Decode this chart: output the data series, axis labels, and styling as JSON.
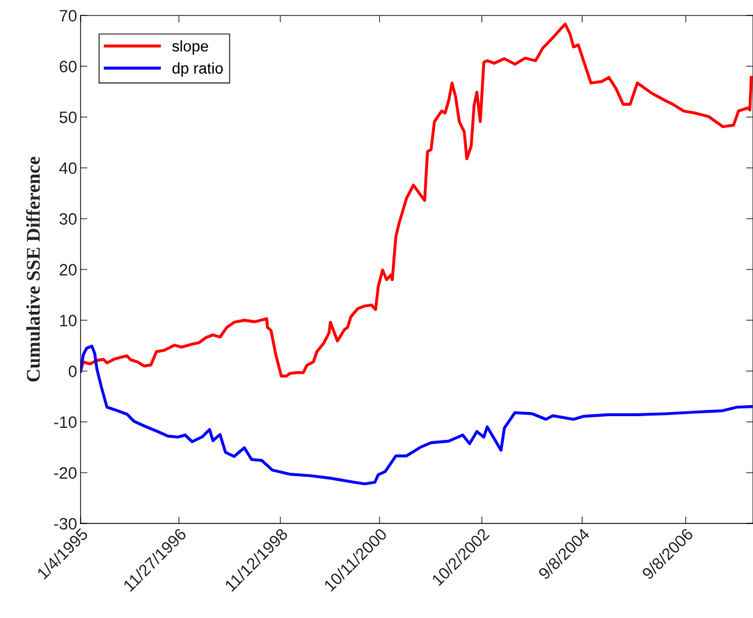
{
  "chart_data": {
    "type": "line",
    "ylabel": "Cumulative SSE Difference",
    "xlim": [
      "1995-01-04",
      "2007-12-26"
    ],
    "xticks": [
      {
        "value": "1995-01-04",
        "label": "1/4/1995"
      },
      {
        "value": "1996-11-27",
        "label": "11/27/1996"
      },
      {
        "value": "1998-11-12",
        "label": "11/12/1998"
      },
      {
        "value": "2000-10-11",
        "label": "10/11/2000"
      },
      {
        "value": "2002-10-02",
        "label": "10/2/2002"
      },
      {
        "value": "2004-09-08",
        "label": "9/8/2004"
      },
      {
        "value": "2006-09-08",
        "label": "9/8/2006"
      }
    ],
    "ylim": [
      -30,
      70
    ],
    "yticks": [
      -30,
      -20,
      -10,
      0,
      10,
      20,
      30,
      40,
      50,
      60,
      70
    ],
    "grid": false,
    "legend": "top left",
    "marker": "none",
    "line_style": "solid",
    "series": [
      {
        "name": "slope",
        "color": "#ff0000",
        "x": [
          "1995-01-04",
          "1995-01-23",
          "1995-03-12",
          "1995-04-29",
          "1995-06-15",
          "1995-07-09",
          "1995-08-26",
          "1995-10-12",
          "1995-11-28",
          "1995-12-23",
          "1996-02-09",
          "1996-03-27",
          "1996-05-14",
          "1996-06-21",
          "1996-08-18",
          "1996-10-28",
          "1996-12-16",
          "1997-02-28",
          "1997-04-19",
          "1997-06-06",
          "1997-07-25",
          "1997-09-13",
          "1997-10-31",
          "1997-12-21",
          "1998-03-03",
          "1998-05-17",
          "1998-08-08",
          "1998-08-13",
          "1998-09-07",
          "1998-10-11",
          "1998-11-19",
          "1998-12-24",
          "1999-01-16",
          "1999-03-05",
          "1999-04-23",
          "1999-05-17",
          "1999-07-03",
          "1999-07-27",
          "1999-09-14",
          "1999-10-21",
          "1999-10-31",
          "1999-12-19",
          "2000-02-05",
          "2000-02-29",
          "2000-03-23",
          "2000-05-11",
          "2000-06-28",
          "2000-08-16",
          "2000-09-13",
          "2000-10-02",
          "2000-11-01",
          "2000-11-30",
          "2000-12-30",
          "2001-01-09",
          "2001-02-03",
          "2001-02-27",
          "2001-04-19",
          "2001-06-07",
          "2001-07-26",
          "2001-08-25",
          "2001-09-14",
          "2001-10-09",
          "2001-11-02",
          "2001-12-23",
          "2002-01-16",
          "2002-02-10",
          "2002-03-06",
          "2002-03-31",
          "2002-04-26",
          "2002-05-31",
          "2002-06-18",
          "2002-07-19",
          "2002-08-08",
          "2002-08-28",
          "2002-09-21",
          "2002-10-16",
          "2002-11-09",
          "2002-12-28",
          "2003-03-10",
          "2003-05-23",
          "2003-08-03",
          "2003-10-16",
          "2003-12-03",
          "2004-02-14",
          "2004-04-18",
          "2004-05-12",
          "2004-06-15",
          "2004-07-09",
          "2004-08-12",
          "2004-09-21",
          "2004-11-09",
          "2005-01-24",
          "2005-03-15",
          "2005-05-05",
          "2005-06-24",
          "2005-08-12",
          "2005-10-02",
          "2006-01-11",
          "2006-04-20",
          "2006-06-10",
          "2006-08-24",
          "2006-11-08",
          "2007-02-17",
          "2007-04-07",
          "2007-05-28",
          "2007-08-11",
          "2007-09-15",
          "2007-11-20",
          "2007-12-04",
          "2007-12-14"
        ],
        "values": [
          0,
          1.8,
          1.4,
          2.1,
          2.3,
          1.6,
          2.3,
          2.7,
          3.0,
          2.2,
          1.8,
          1.0,
          1.2,
          3.8,
          4.1,
          5.1,
          4.7,
          5.3,
          5.6,
          6.6,
          7.1,
          6.7,
          8.6,
          9.6,
          10.0,
          9.7,
          10.3,
          8.6,
          8.0,
          3.2,
          -1.0,
          -1.0,
          -0.5,
          -0.3,
          -0.3,
          1.1,
          1.8,
          3.8,
          5.5,
          7.5,
          9.6,
          5.9,
          8.1,
          8.6,
          10.7,
          12.3,
          12.8,
          13.0,
          12.1,
          16.6,
          19.9,
          18.0,
          18.9,
          18.0,
          26.5,
          29.2,
          34.0,
          36.6,
          34.7,
          33.6,
          43.2,
          43.6,
          49.1,
          51.2,
          50.8,
          53.2,
          56.7,
          54.0,
          49.1,
          47.1,
          41.8,
          44.3,
          52.2,
          54.9,
          49.1,
          60.8,
          61.1,
          60.6,
          61.5,
          60.4,
          61.6,
          61.1,
          63.5,
          65.6,
          67.6,
          68.3,
          66.3,
          63.8,
          64.2,
          60.8,
          56.7,
          57.0,
          57.8,
          55.6,
          52.5,
          52.5,
          56.7,
          54.7,
          53.2,
          52.5,
          51.2,
          50.8,
          50.1,
          49.1,
          48.1,
          48.4,
          51.2,
          51.8,
          51.4,
          57.8
        ]
      },
      {
        "name": "dp ratio",
        "color": "#0000ff",
        "x": [
          "1995-01-04",
          "1995-01-23",
          "1995-02-16",
          "1995-03-25",
          "1995-04-14",
          "1995-04-29",
          "1995-06-05",
          "1995-07-09",
          "1995-09-19",
          "1995-11-28",
          "1996-01-16",
          "1996-03-27",
          "1996-06-30",
          "1996-09-10",
          "1996-11-20",
          "1997-01-10",
          "1997-02-28",
          "1997-05-13",
          "1997-07-01",
          "1997-07-25",
          "1997-09-13",
          "1997-10-21",
          "1997-12-21",
          "1998-03-03",
          "1998-04-23",
          "1998-07-04",
          "1998-09-17",
          "1999-01-16",
          "1999-06-09",
          "1999-10-31",
          "2000-04-17",
          "2000-06-28",
          "2000-09-08",
          "2000-10-02",
          "2000-11-20",
          "2001-02-03",
          "2001-04-19",
          "2001-07-26",
          "2001-10-09",
          "2002-02-10",
          "2002-05-20",
          "2002-07-08",
          "2002-08-28",
          "2002-10-16",
          "2002-11-09",
          "2002-12-28",
          "2003-02-14",
          "2003-03-10",
          "2003-05-23",
          "2003-09-22",
          "2003-12-28",
          "2004-02-14",
          "2004-07-09",
          "2004-09-21",
          "2005-03-15",
          "2005-10-02",
          "2006-04-20",
          "2006-11-08",
          "2007-05-28",
          "2007-09-05",
          "2007-12-14"
        ],
        "values": [
          0,
          3.2,
          4.5,
          4.9,
          3.4,
          0.4,
          -3.7,
          -7.1,
          -7.8,
          -8.5,
          -9.9,
          -10.8,
          -11.9,
          -12.8,
          -13.0,
          -12.6,
          -13.9,
          -12.9,
          -11.5,
          -13.7,
          -12.5,
          -16.0,
          -16.8,
          -15.1,
          -17.4,
          -17.6,
          -19.5,
          -20.3,
          -20.6,
          -21.1,
          -21.9,
          -22.2,
          -21.9,
          -20.4,
          -19.8,
          -16.7,
          -16.7,
          -15.0,
          -14.1,
          -13.8,
          -12.6,
          -14.3,
          -11.9,
          -13.0,
          -11.0,
          -13.3,
          -15.6,
          -11.2,
          -8.2,
          -8.4,
          -9.5,
          -8.8,
          -9.5,
          -8.9,
          -8.6,
          -8.6,
          -8.4,
          -8.1,
          -7.8,
          -7.1,
          -7.0
        ]
      }
    ]
  }
}
